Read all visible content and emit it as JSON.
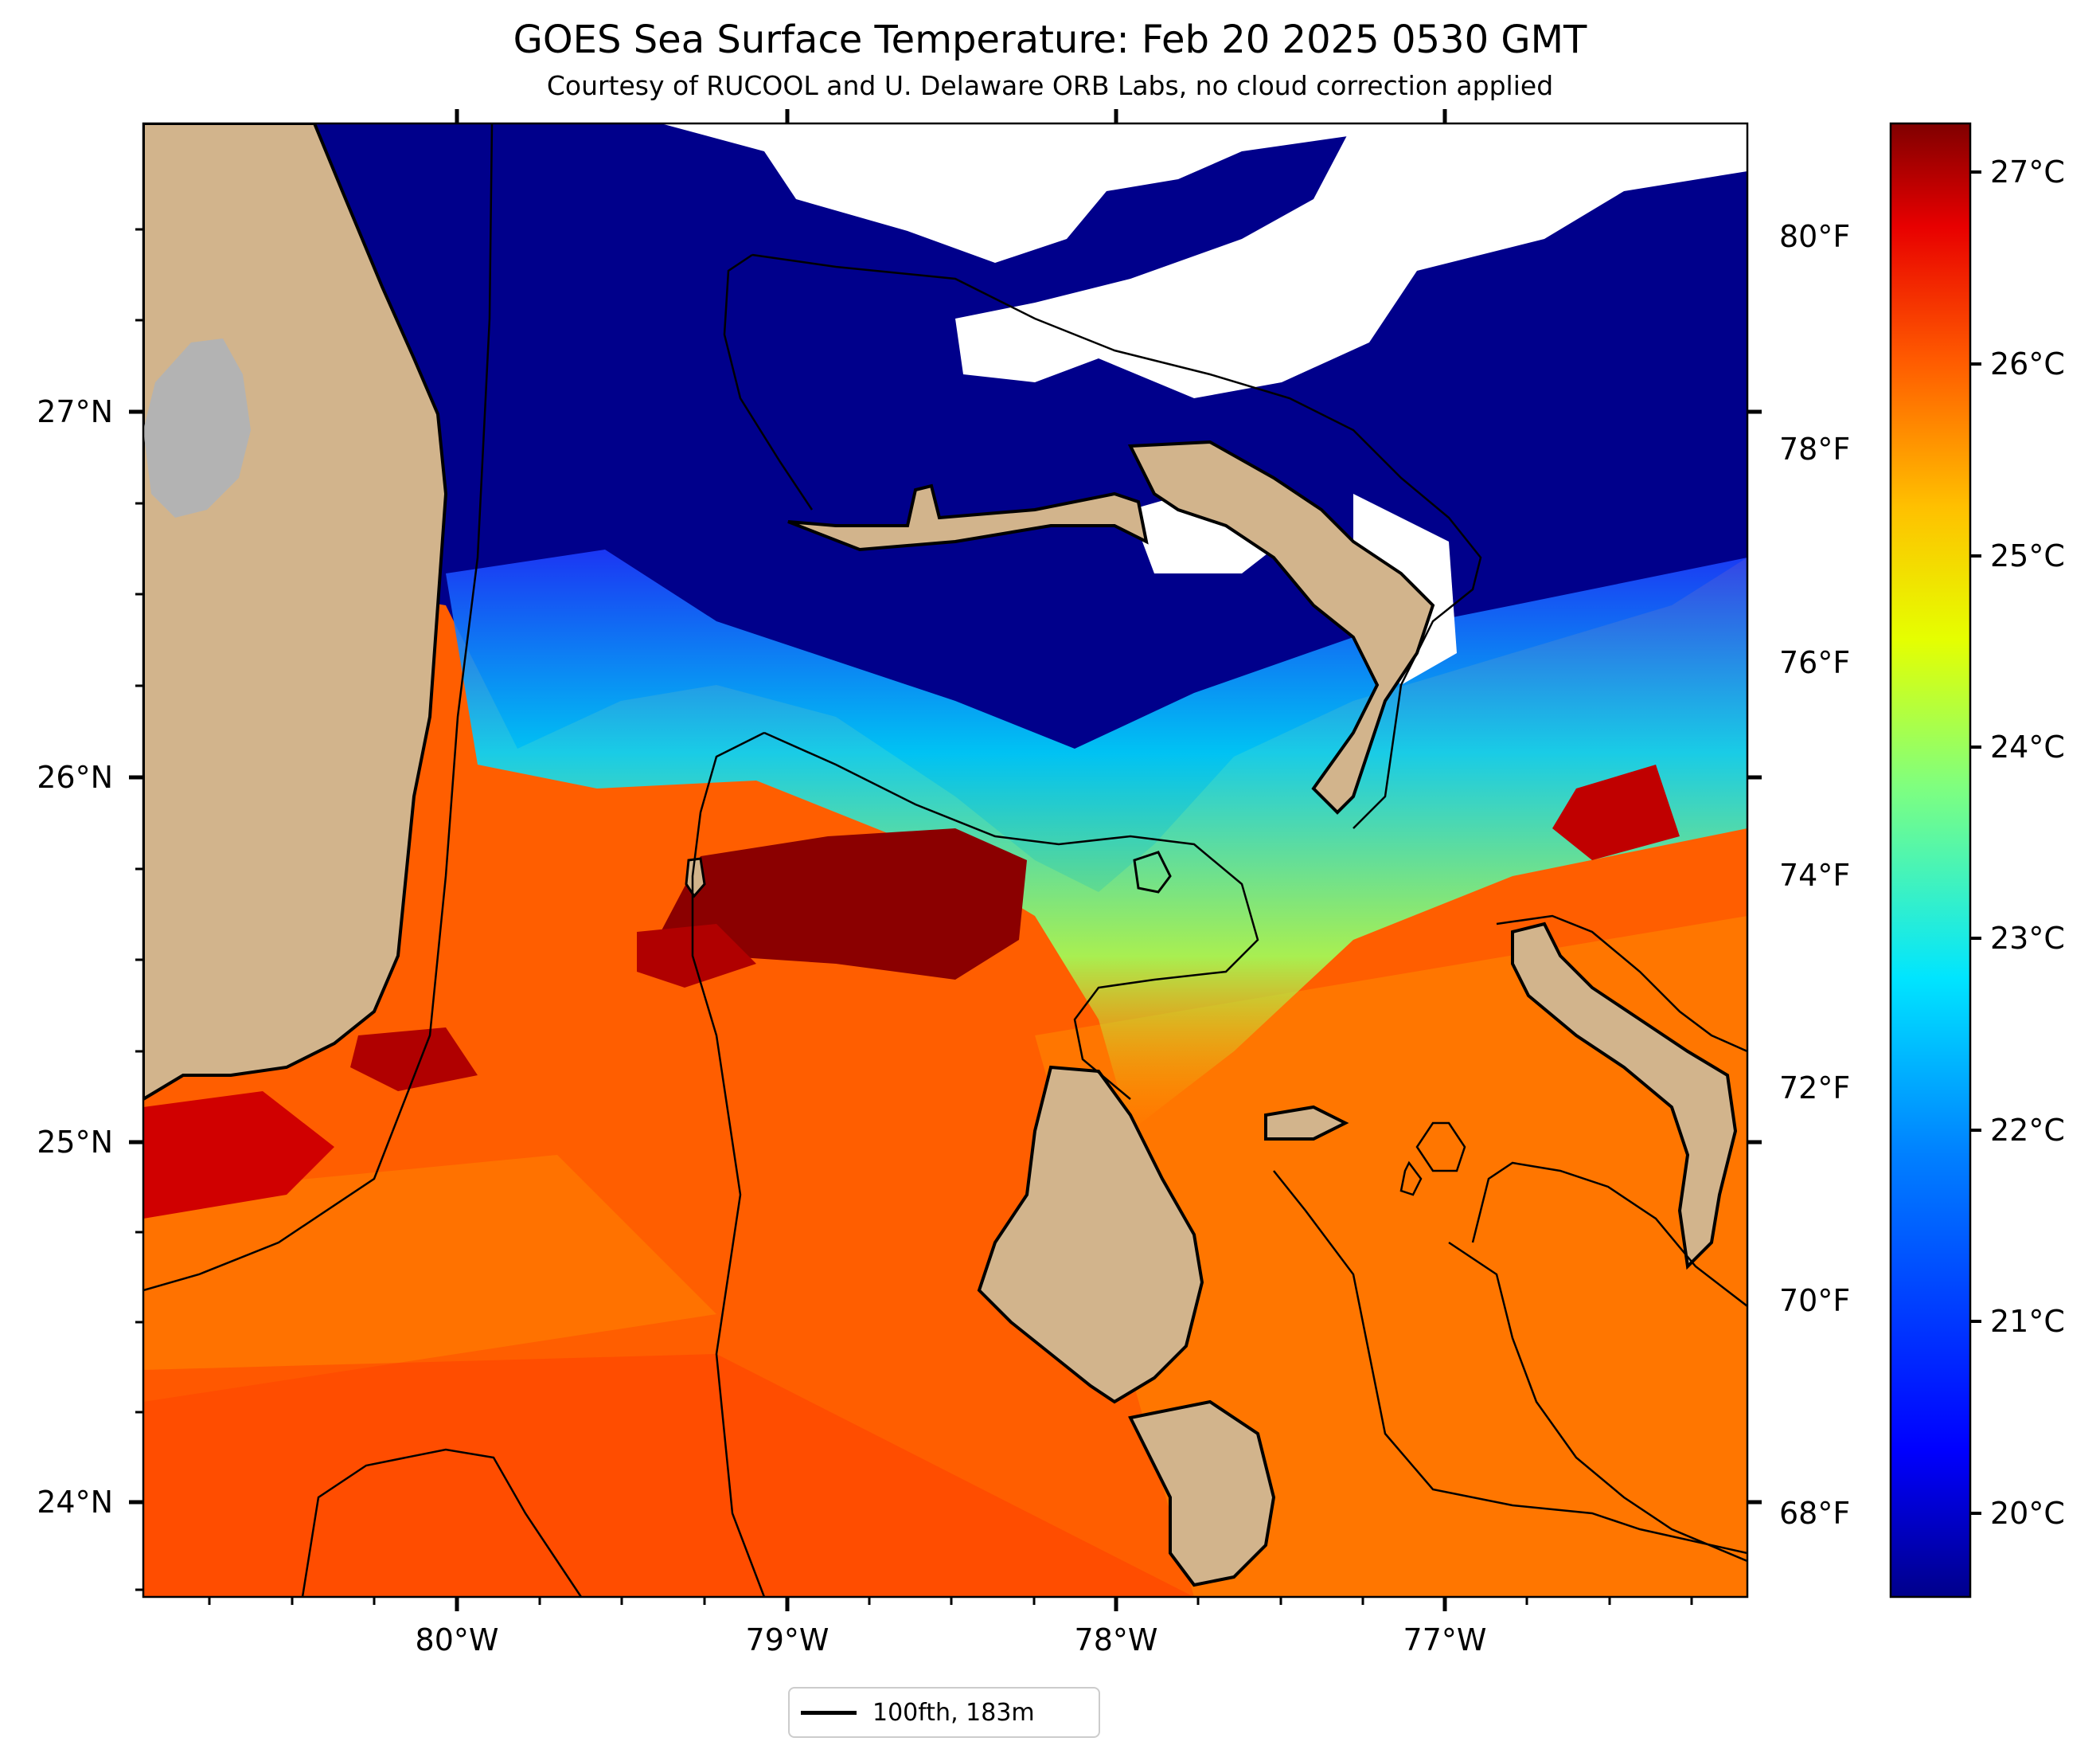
{
  "title": "GOES Sea Surface Temperature: Feb 20 2025 0530 GMT",
  "subtitle": "Courtesy of RUCOOL and U. Delaware ORB Labs, no cloud correction applied",
  "map": {
    "lat_ticks": [
      "27°N",
      "26°N",
      "25°N",
      "24°N"
    ],
    "lon_ticks": [
      "80°W",
      "79°W",
      "78°W",
      "77°W"
    ],
    "fahrenheit_ticks": [
      "80°F",
      "78°F",
      "76°F",
      "74°F",
      "72°F",
      "70°F",
      "68°F"
    ],
    "celsius_ticks": [
      "27°C",
      "26°C",
      "25°C",
      "24°C",
      "23°C",
      "22°C",
      "21°C",
      "20°C"
    ],
    "colors": {
      "land": "#d2b48c",
      "lake": "#b3b3b3",
      "cloud": "#ffffff",
      "cold": "#00008b",
      "warm": "#ff5a00",
      "hot": "#8b0000"
    }
  },
  "legend": {
    "label": "100fth, 183m"
  }
}
